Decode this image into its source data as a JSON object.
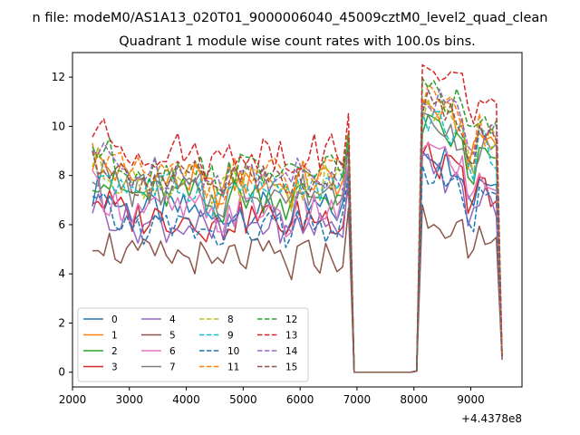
{
  "chart_data": {
    "type": "line",
    "suptitle": "n file: modeM0/AS1A13_020T01_9000006040_45009cztM0_level2_quad_clean",
    "title": "Quadrant 1 module wise count rates with 100.0s bins.",
    "xlabel": "",
    "ylabel": "",
    "x_offset_label": "+4.4378e8",
    "xlim": [
      2000,
      9900
    ],
    "ylim": [
      -0.6,
      13.0
    ],
    "xticks": [
      2000,
      3000,
      4000,
      5000,
      6000,
      7000,
      8000,
      9000
    ],
    "yticks": [
      0,
      2,
      4,
      6,
      8,
      10,
      12
    ],
    "grid": false,
    "legend": {
      "placement": "lower-left",
      "columns": 4
    },
    "series_order": [
      "0",
      "1",
      "2",
      "3",
      "4",
      "5",
      "6",
      "7",
      "8",
      "9",
      "10",
      "11",
      "12",
      "13",
      "14",
      "15"
    ],
    "series": [
      {
        "name": "0",
        "color": "#1f77b4",
        "style": "solid",
        "level": 6.6
      },
      {
        "name": "1",
        "color": "#ff7f0e",
        "style": "solid",
        "level": 7.8
      },
      {
        "name": "2",
        "color": "#2ca02c",
        "style": "solid",
        "level": 7.2
      },
      {
        "name": "3",
        "color": "#d62728",
        "style": "solid",
        "level": 6.3
      },
      {
        "name": "4",
        "color": "#9467bd",
        "style": "solid",
        "level": 6.0
      },
      {
        "name": "5",
        "color": "#8c564b",
        "style": "solid",
        "level": 4.7
      },
      {
        "name": "6",
        "color": "#e377c2",
        "style": "solid",
        "level": 6.6
      },
      {
        "name": "7",
        "color": "#7f7f7f",
        "style": "solid",
        "level": 7.4
      },
      {
        "name": "8",
        "color": "#bcbd22",
        "style": "dashed",
        "level": 7.7
      },
      {
        "name": "9",
        "color": "#17becf",
        "style": "dashed",
        "level": 7.5
      },
      {
        "name": "10",
        "color": "#1f77b4",
        "style": "dashed",
        "level": 5.9
      },
      {
        "name": "11",
        "color": "#ff7f0e",
        "style": "dashed",
        "level": 8.0
      },
      {
        "name": "12",
        "color": "#2ca02c",
        "style": "dashed",
        "level": 8.3
      },
      {
        "name": "13",
        "color": "#d62728",
        "style": "dashed",
        "level": 9.0
      },
      {
        "name": "14",
        "color": "#9467bd",
        "style": "dashed",
        "level": 8.1
      },
      {
        "name": "15",
        "color": "#8c564b",
        "style": "dashed",
        "level": 7.9
      }
    ],
    "time_bins": {
      "first_x": 2350,
      "bin_width": 100,
      "active_segments": [
        [
          2350,
          6850
        ],
        [
          8100,
          9550
        ]
      ],
      "gap": [
        6900,
        8050
      ]
    }
  }
}
